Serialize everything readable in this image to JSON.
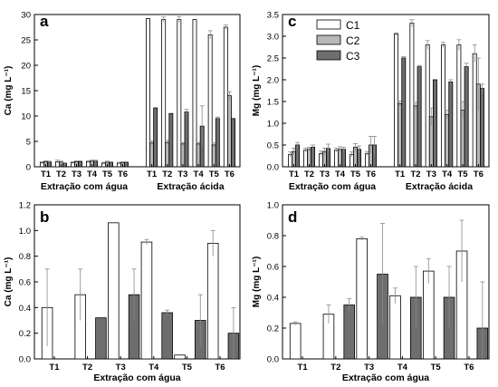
{
  "colors": {
    "C1": "#ffffff",
    "C2": "#b8b8b8",
    "C3": "#6e6e6e",
    "axis": "#000000",
    "err": "#8a8a8a"
  },
  "legend_entries": [
    "C1",
    "C2",
    "C3"
  ],
  "chart_data": [
    {
      "panel": "a",
      "type": "bar",
      "ylabel": "Ca (mg L⁻¹)",
      "ylim": [
        0,
        30
      ],
      "yticks": [
        "0",
        "5",
        "10",
        "15",
        "20",
        "25",
        "30"
      ],
      "groups": [
        {
          "xlabel": "Extração com água",
          "categories": [
            "T1",
            "T2",
            "T3",
            "T4",
            "T5",
            "T6"
          ],
          "series": [
            {
              "name": "C1",
              "values": [
                0.8,
                1.0,
                0.8,
                1.0,
                0.7,
                0.7
              ],
              "errors": [
                0.2,
                0.3,
                0.2,
                0.2,
                0.2,
                0.2
              ]
            },
            {
              "name": "C2",
              "values": [
                1.0,
                0.9,
                1.0,
                1.1,
                0.9,
                0.8
              ],
              "errors": [
                0.2,
                0.2,
                0.2,
                0.2,
                0.2,
                0.2
              ]
            },
            {
              "name": "C3",
              "values": [
                0.9,
                0.6,
                1.0,
                1.1,
                0.8,
                0.8
              ],
              "errors": [
                0.2,
                0.2,
                0.2,
                0.2,
                0.2,
                0.2
              ]
            }
          ]
        },
        {
          "xlabel": "Extração ácida",
          "categories": [
            "T1",
            "T2",
            "T3",
            "T4",
            "T5",
            "T6"
          ],
          "series": [
            {
              "name": "C1",
              "values": [
                29.2,
                29.0,
                29.0,
                29.0,
                26.0,
                27.5
              ],
              "errors": [
                0.0,
                0.5,
                0.6,
                0.0,
                0.8,
                0.5
              ]
            },
            {
              "name": "C2",
              "values": [
                4.7,
                4.8,
                4.5,
                4.5,
                4.3,
                14.0
              ],
              "errors": [
                0.4,
                0.4,
                0.3,
                0.3,
                0.4,
                0.8
              ]
            },
            {
              "name": "C3",
              "values": [
                11.6,
                10.5,
                10.8,
                8.0,
                9.5,
                9.5
              ],
              "errors": [
                0.0,
                0.0,
                0.5,
                4.0,
                0.3,
                0.0
              ]
            }
          ]
        }
      ]
    },
    {
      "panel": "c",
      "type": "bar",
      "ylabel": "Mg (mg L⁻¹)",
      "ylim": [
        0,
        3.5
      ],
      "yticks": [
        "0.0",
        "0.5",
        "1.0",
        "1.5",
        "2.0",
        "2.5",
        "3.0",
        "3.5"
      ],
      "groups": [
        {
          "xlabel": "Extração com água",
          "categories": [
            "T1",
            "T2",
            "T3",
            "T4",
            "T5",
            "T6"
          ],
          "series": [
            {
              "name": "C1",
              "values": [
                0.28,
                0.38,
                0.3,
                0.38,
                0.28,
                0.3
              ],
              "errors": [
                0.06,
                0.05,
                0.06,
                0.05,
                0.06,
                0.05
              ]
            },
            {
              "name": "C2",
              "values": [
                0.35,
                0.4,
                0.35,
                0.4,
                0.45,
                0.5
              ],
              "errors": [
                0.08,
                0.05,
                0.08,
                0.06,
                0.08,
                0.2
              ]
            },
            {
              "name": "C3",
              "values": [
                0.5,
                0.45,
                0.42,
                0.4,
                0.4,
                0.5
              ],
              "errors": [
                0.06,
                0.05,
                0.1,
                0.05,
                0.08,
                0.2
              ]
            }
          ]
        },
        {
          "xlabel": "Extração ácida",
          "categories": [
            "T1",
            "T2",
            "T3",
            "T4",
            "T5",
            "T6"
          ],
          "series": [
            {
              "name": "C1",
              "values": [
                3.05,
                3.3,
                2.8,
                2.8,
                2.8,
                2.6
              ],
              "errors": [
                0.03,
                0.08,
                0.1,
                0.06,
                0.12,
                0.2
              ]
            },
            {
              "name": "C2",
              "values": [
                1.45,
                1.4,
                1.15,
                1.2,
                1.3,
                1.9
              ],
              "errors": [
                0.06,
                0.08,
                0.2,
                0.1,
                0.2,
                0.6
              ]
            },
            {
              "name": "C3",
              "values": [
                2.5,
                2.3,
                2.0,
                1.95,
                2.3,
                1.8
              ],
              "errors": [
                0.03,
                0.03,
                0.0,
                0.05,
                0.08,
                0.1
              ]
            }
          ]
        }
      ]
    },
    {
      "panel": "b",
      "type": "bar",
      "ylabel": "Ca (mg L⁻¹)",
      "xlabel": "Extração com água",
      "ylim": [
        0,
        1.2
      ],
      "yticks": [
        "0.0",
        "0.2",
        "0.4",
        "0.6",
        "0.8",
        "1.0",
        "1.2"
      ],
      "categories": [
        "T1",
        "T2",
        "T3",
        "T4",
        "T5",
        "T6"
      ],
      "bars": [
        {
          "category": "T1",
          "series": "C1",
          "value": 0.4,
          "error": 0.3
        },
        {
          "category": "T2",
          "series": "C1",
          "value": 0.5,
          "error": 0.2
        },
        {
          "category": "T2",
          "series": "C3",
          "value": 0.32,
          "error": 0.0
        },
        {
          "category": "T3",
          "series": "C1",
          "value": 1.06,
          "error": 0.0
        },
        {
          "category": "T3",
          "series": "C3",
          "value": 0.5,
          "error": 0.2
        },
        {
          "category": "T4",
          "series": "C1",
          "value": 0.91,
          "error": 0.02
        },
        {
          "category": "T4",
          "series": "C3",
          "value": 0.36,
          "error": 0.02
        },
        {
          "category": "T5",
          "series": "C1",
          "value": 0.03,
          "error": 0.0
        },
        {
          "category": "T5",
          "series": "C3",
          "value": 0.3,
          "error": 0.2
        },
        {
          "category": "T6",
          "series": "C1",
          "value": 0.9,
          "error": 0.1
        },
        {
          "category": "T6",
          "series": "C3",
          "value": 0.2,
          "error": 0.2
        }
      ]
    },
    {
      "panel": "d",
      "type": "bar",
      "ylabel": "Mg (mg L⁻¹)",
      "xlabel": "Extração com água",
      "ylim": [
        0,
        1.0
      ],
      "yticks": [
        "0.0",
        "0.2",
        "0.4",
        "0.6",
        "0.8",
        "1.0"
      ],
      "categories": [
        "T1",
        "T2",
        "T3",
        "T4",
        "T5",
        "T6"
      ],
      "bars": [
        {
          "category": "T1",
          "series": "C1",
          "value": 0.23,
          "error": 0.01
        },
        {
          "category": "T2",
          "series": "C1",
          "value": 0.29,
          "error": 0.06
        },
        {
          "category": "T2",
          "series": "C3",
          "value": 0.35,
          "error": 0.04
        },
        {
          "category": "T3",
          "series": "C1",
          "value": 0.78,
          "error": 0.01
        },
        {
          "category": "T3",
          "series": "C3",
          "value": 0.55,
          "error": 0.33
        },
        {
          "category": "T4",
          "series": "C1",
          "value": 0.41,
          "error": 0.05
        },
        {
          "category": "T4",
          "series": "C3",
          "value": 0.4,
          "error": 0.2
        },
        {
          "category": "T5",
          "series": "C1",
          "value": 0.57,
          "error": 0.08
        },
        {
          "category": "T5",
          "series": "C3",
          "value": 0.4,
          "error": 0.2
        },
        {
          "category": "T6",
          "series": "C1",
          "value": 0.7,
          "error": 0.2
        },
        {
          "category": "T6",
          "series": "C3",
          "value": 0.2,
          "error": 0.3
        }
      ]
    }
  ]
}
